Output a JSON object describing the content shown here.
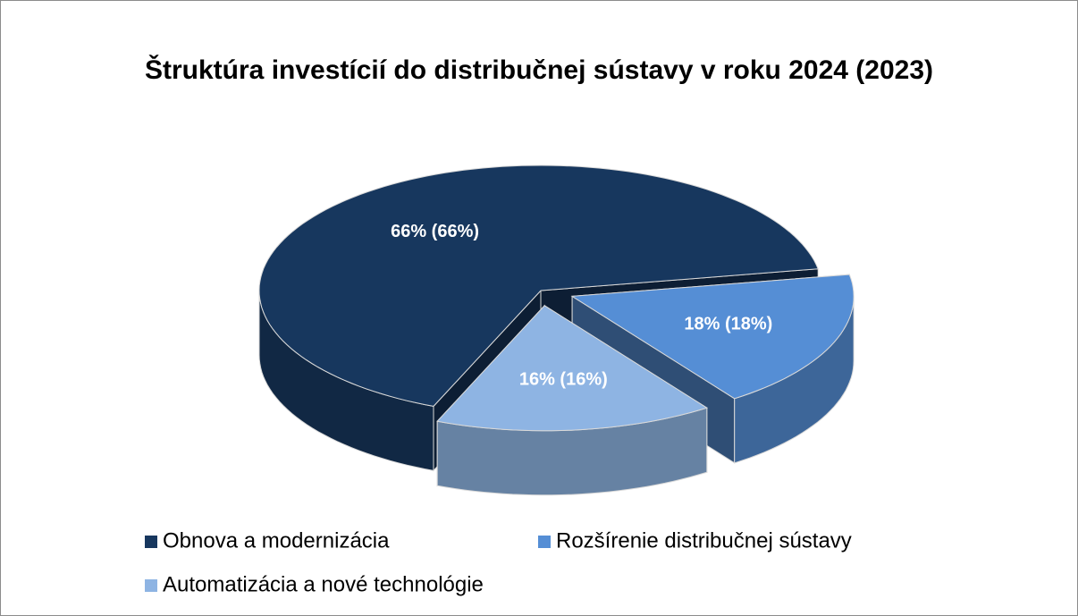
{
  "chart_data": {
    "type": "pie",
    "title": "Štruktúra investícií do distribučnej sústavy v roku 2024 (2023)",
    "categories": [
      "Obnova a modernizácia",
      "Rozšírenie distribučnej sústavy",
      "Automatizácia a nové technológie"
    ],
    "values": [
      66,
      18,
      16
    ],
    "value_labels": [
      "66% (66%)",
      "18% (18%)",
      "16% (16%)"
    ],
    "colors": [
      "#17375e",
      "#558ed5",
      "#8eb4e3"
    ],
    "legend": "bottom"
  }
}
